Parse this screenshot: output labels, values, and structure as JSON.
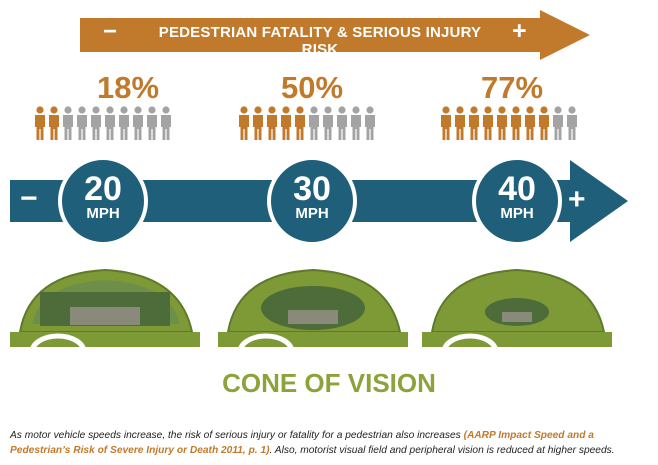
{
  "risk": {
    "title": "PEDESTRIAN FATALITY & SERIOUS INJURY RISK",
    "minus": "−",
    "plus": "+"
  },
  "groups": [
    {
      "percent": "18%",
      "affected": 2,
      "total": 10
    },
    {
      "percent": "50%",
      "affected": 5,
      "total": 10
    },
    {
      "percent": "77%",
      "affected": 8,
      "total": 10
    }
  ],
  "speeds": [
    {
      "value": "20",
      "unit": "MPH"
    },
    {
      "value": "30",
      "unit": "MPH"
    },
    {
      "value": "40",
      "unit": "MPH"
    }
  ],
  "speed_minus": "−",
  "speed_plus": "+",
  "cone_label": "CONE OF VISION",
  "caption": {
    "before": "As motor vehicle speeds increase, the risk of serious injury or fatality for a pedestrian also increases ",
    "citation": "(AARP Impact Speed and a Pedestrian’s Risk of Severe Injury or Death 2011, p. 1)",
    "after": ". Also, motorist visual field and peripheral vision is reduced at higher speeds."
  },
  "colors": {
    "orange": "#c17a2b",
    "gray": "#a3a3a3",
    "teal": "#1f5f7a",
    "green": "#7d9a37",
    "light_green": "#8ca33b"
  }
}
